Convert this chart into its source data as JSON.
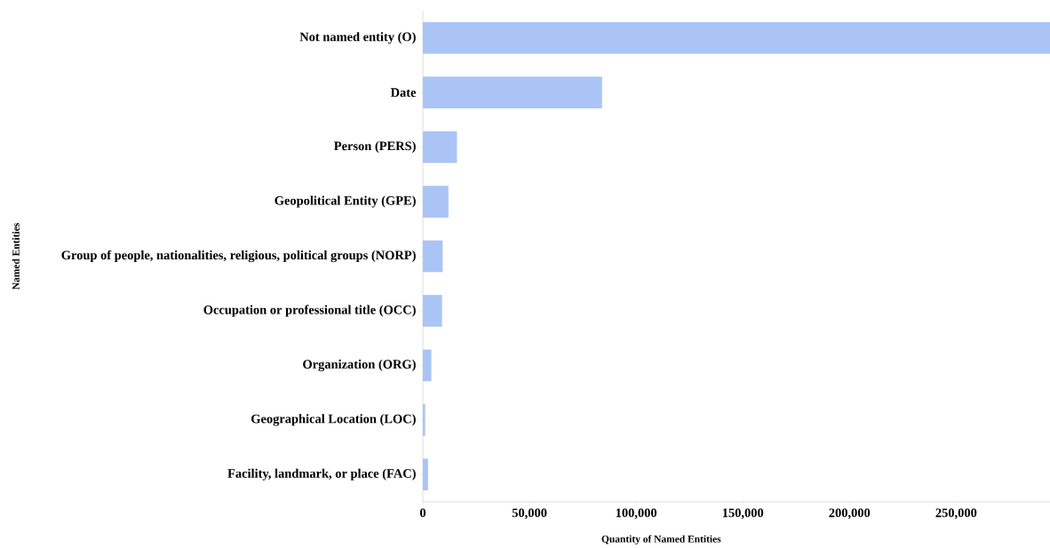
{
  "chart_data": {
    "type": "bar",
    "orientation": "horizontal",
    "xlabel": "Quantity of Named Entities",
    "ylabel": "Named Entities",
    "categories": [
      "Not named entity (O)",
      "Date",
      "Person (PERS)",
      "Geopolitical Entity (GPE)",
      "Group of people, nationalities, religious, political groups (NORP)",
      "Occupation or professional title (OCC)",
      "Organization (ORG)",
      "Geographical Location (LOC)",
      "Facility, landmark, or place (FAC)"
    ],
    "values": [
      294000,
      84000,
      16000,
      12000,
      9300,
      9000,
      4000,
      1100,
      2400
    ],
    "color": "#aac4f5",
    "xlim": [
      0,
      294000
    ],
    "xticks": [
      {
        "value": 0,
        "label": "0"
      },
      {
        "value": 50000,
        "label": "50,000"
      },
      {
        "value": 100000,
        "label": "100,000"
      },
      {
        "value": 150000,
        "label": "150,000"
      },
      {
        "value": 200000,
        "label": "200,000"
      },
      {
        "value": 250000,
        "label": "250,000"
      }
    ],
    "grid": false
  }
}
